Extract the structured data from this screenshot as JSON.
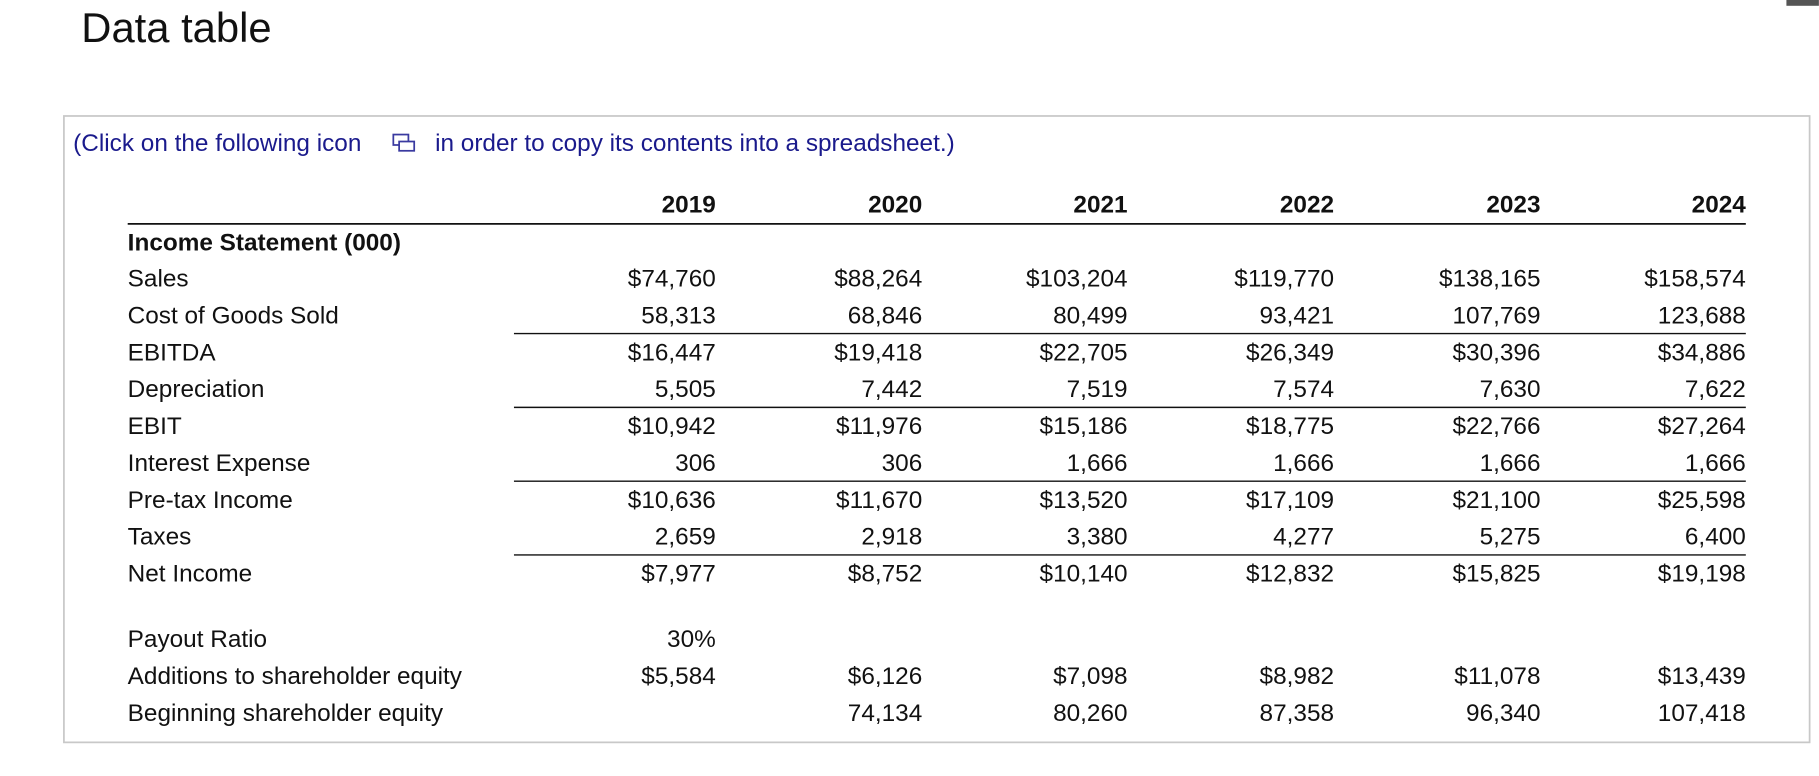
{
  "header": {
    "title": "Data table"
  },
  "instruction": {
    "before_icon": "(Click on the following icon",
    "after_icon": "in order to copy its contents into a spreadsheet.)"
  },
  "table": {
    "columns": [
      "2019",
      "2020",
      "2021",
      "2022",
      "2023",
      "2024"
    ],
    "income_statement": {
      "heading": "Income Statement (000)",
      "rows": [
        {
          "label": "Sales",
          "cells": [
            "$74,760",
            "$88,264",
            "$103,204",
            "$119,770",
            "$138,165",
            "$158,574"
          ]
        },
        {
          "label": "Cost of Goods Sold",
          "cells": [
            "58,313",
            "68,846",
            "80,499",
            "93,421",
            "107,769",
            "123,688"
          ]
        },
        {
          "label": "EBITDA",
          "cells": [
            "$16,447",
            "$19,418",
            "$22,705",
            "$26,349",
            "$30,396",
            "$34,886"
          ]
        },
        {
          "label": "Depreciation",
          "cells": [
            "5,505",
            "7,442",
            "7,519",
            "7,574",
            "7,630",
            "7,622"
          ]
        },
        {
          "label": "EBIT",
          "cells": [
            "$10,942",
            "$11,976",
            "$15,186",
            "$18,775",
            "$22,766",
            "$27,264"
          ]
        },
        {
          "label": "Interest Expense",
          "cells": [
            "306",
            "306",
            "1,666",
            "1,666",
            "1,666",
            "1,666"
          ]
        },
        {
          "label": "Pre-tax Income",
          "cells": [
            "$10,636",
            "$11,670",
            "$13,520",
            "$17,109",
            "$21,100",
            "$25,598"
          ]
        },
        {
          "label": "Taxes",
          "cells": [
            "2,659",
            "2,918",
            "3,380",
            "4,277",
            "5,275",
            "6,400"
          ]
        },
        {
          "label": "Net Income",
          "cells": [
            "$7,977",
            "$8,752",
            "$10,140",
            "$12,832",
            "$15,825",
            "$19,198"
          ]
        }
      ]
    },
    "equity": [
      {
        "label": "Payout Ratio",
        "cells": [
          "30%",
          null,
          null,
          null,
          null,
          null
        ]
      },
      {
        "label": "Additions to shareholder equity",
        "cells": [
          "$5,584",
          "$6,126",
          "$7,098",
          "$8,982",
          "$11,078",
          "$13,439"
        ]
      },
      {
        "label": "Beginning shareholder equity",
        "cells": [
          null,
          "74,134",
          "80,260",
          "87,358",
          "96,340",
          "107,418"
        ]
      }
    ]
  }
}
